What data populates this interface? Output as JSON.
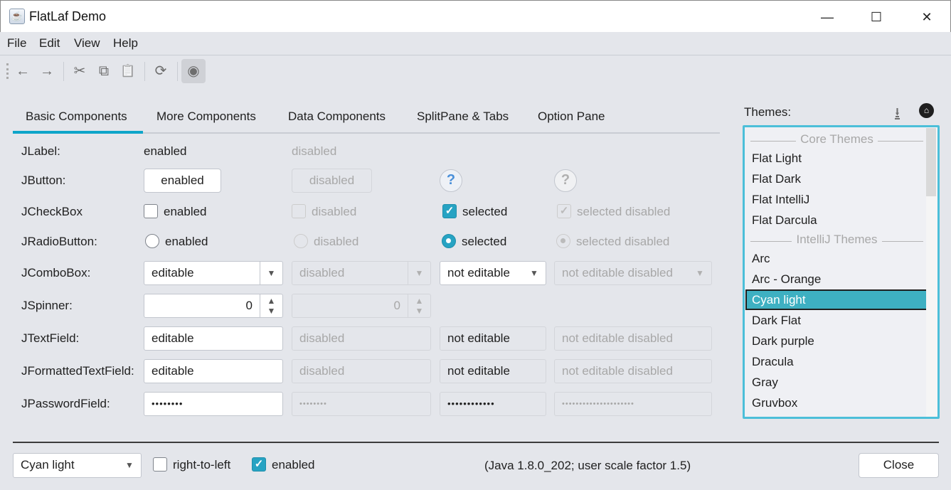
{
  "window": {
    "title": "FlatLaf Demo",
    "minimize": "—",
    "maximize": "☐",
    "close": "✕"
  },
  "menu": [
    "File",
    "Edit",
    "View",
    "Help"
  ],
  "toolbar": {
    "icons": [
      "arrow-left",
      "arrow-right",
      "cut",
      "copy",
      "paste",
      "refresh",
      "eye"
    ],
    "glyphs": [
      "←",
      "→",
      "✂",
      "⧉",
      "📋",
      "⟳",
      "◉"
    ],
    "pressed": "eye"
  },
  "tabs": [
    "Basic Components",
    "More Components",
    "Data Components",
    "SplitPane & Tabs",
    "Option Pane"
  ],
  "selected_tab": "Basic Components",
  "accent": "#0ea5c9",
  "rows": {
    "labels": [
      "JLabel:",
      "JButton:",
      "JCheckBox",
      "JRadioButton:",
      "JComboBox:",
      "JSpinner:",
      "JTextField:",
      "JFormattedTextField:",
      "JPasswordField:"
    ],
    "label": [
      "enabled",
      "disabled"
    ],
    "button": [
      "enabled",
      "disabled",
      "?",
      "?"
    ],
    "checkbox": [
      "enabled",
      "disabled",
      "selected",
      "selected disabled"
    ],
    "radio": [
      "enabled",
      "disabled",
      "selected",
      "selected disabled"
    ],
    "combo": [
      "editable",
      "disabled",
      "not editable",
      "not editable disabled"
    ],
    "spinner": [
      "0",
      "0"
    ],
    "textfield": [
      "editable",
      "disabled",
      "not editable",
      "not editable disabled"
    ],
    "formatted": [
      "editable",
      "disabled",
      "not editable",
      "not editable disabled"
    ],
    "password": [
      "••••••••",
      "••••••••",
      "••••••••••••",
      "•••••••••••••••••••••"
    ]
  },
  "themes": {
    "label": "Themes:",
    "groups": [
      "Core Themes",
      "IntelliJ Themes"
    ],
    "items": [
      "Flat Light",
      "Flat Dark",
      "Flat IntelliJ",
      "Flat Darcula",
      "Arc",
      "Arc - Orange",
      "Cyan light",
      "Dark Flat",
      "Dark purple",
      "Dracula",
      "Gray",
      "Gruvbox"
    ],
    "selected": "Cyan light",
    "selection_color": "#3eb0c2"
  },
  "bottom": {
    "theme_combo": "Cyan light",
    "rtl_label": "right-to-left",
    "rtl_checked": false,
    "enabled_label": "enabled",
    "enabled_checked": true,
    "info": "(Java 1.8.0_202;  user scale factor 1.5)",
    "close": "Close"
  }
}
